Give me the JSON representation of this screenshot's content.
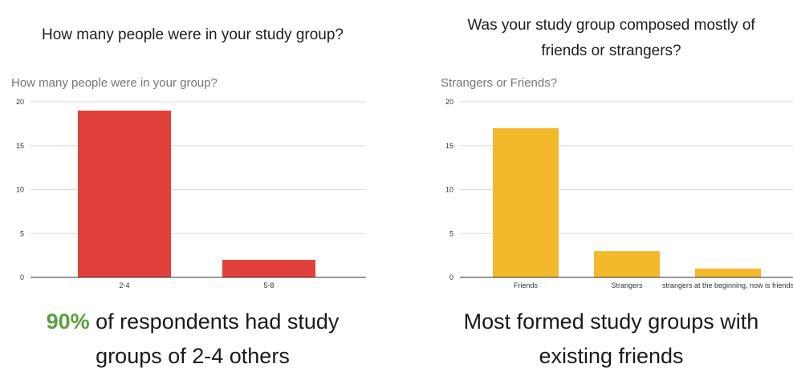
{
  "chart_data": [
    {
      "type": "bar",
      "question_lines": [
        "How many people were in your study group?"
      ],
      "title": "How many people were in your group?",
      "categories": [
        "2-4",
        "5-8"
      ],
      "values": [
        19,
        2
      ],
      "ylim": [
        0,
        20
      ],
      "yticks": [
        "0",
        "5",
        "10",
        "15",
        "20"
      ],
      "color": "#e0413a",
      "grid": true,
      "caption": {
        "highlight": "90%",
        "rest_line1": " of respondents had study",
        "line2": "groups of 2-4 others",
        "highlight_color": "#5aa03c"
      }
    },
    {
      "type": "bar",
      "question_lines": [
        "Was your study group composed mostly of",
        "friends or strangers?"
      ],
      "title": "Strangers or Friends?",
      "categories": [
        "Friends",
        "Strangers",
        "strangers at the beginning, now is friends"
      ],
      "values": [
        17,
        3,
        1
      ],
      "ylim": [
        0,
        20
      ],
      "yticks": [
        "0",
        "5",
        "10",
        "15",
        "20"
      ],
      "color": "#f2ba2b",
      "grid": true,
      "caption": {
        "line1": "Most formed study groups with",
        "line2": "existing friends"
      }
    }
  ]
}
